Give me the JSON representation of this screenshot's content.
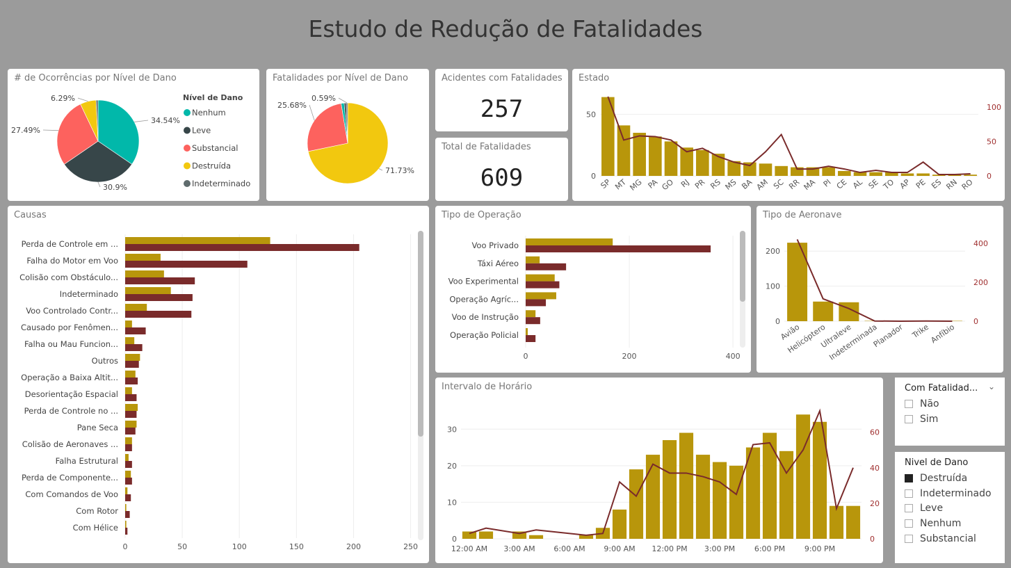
{
  "page": {
    "title": "Estudo de Redução de Fatalidades"
  },
  "colors": {
    "gold": "#b8960b",
    "maroon": "#7a2b2b",
    "nenhum": "#01b8aa",
    "leve": "#374649",
    "substancial": "#fd625e",
    "destruida": "#f2c80f",
    "indeterminado": "#5f6b6d",
    "axis_right": "#a03030"
  },
  "kpis": {
    "acidentes": {
      "label": "Acidentes com Fatalidades",
      "value": "257"
    },
    "fatalidades": {
      "label": "Total de Fatalidades",
      "value": "609"
    }
  },
  "slicers": {
    "fatalidade": {
      "title": "Com Fatalidad...",
      "chevron": "chevron-down-icon",
      "items": [
        {
          "label": "Não",
          "checked": false
        },
        {
          "label": "Sim",
          "checked": false
        }
      ]
    },
    "nivel": {
      "title": "Nivel de Dano",
      "items": [
        {
          "label": "Destruída",
          "checked": true
        },
        {
          "label": "Indeterminado",
          "checked": false
        },
        {
          "label": "Leve",
          "checked": false
        },
        {
          "label": "Nenhum",
          "checked": false
        },
        {
          "label": "Substancial",
          "checked": false
        }
      ]
    }
  },
  "chart_data": [
    {
      "id": "ocorrencias",
      "type": "pie",
      "title": "# de Ocorrências por Nível de Dano",
      "legend_title": "Nível de Dano",
      "legend_position": "right",
      "slices": [
        {
          "name": "Nenhum",
          "value": 34.54,
          "label": "34.54%"
        },
        {
          "name": "Leve",
          "value": 30.9,
          "label": "30.9%"
        },
        {
          "name": "Substancial",
          "value": 27.49,
          "label": "27.49%"
        },
        {
          "name": "Destruída",
          "value": 6.29,
          "label": "6.29%"
        },
        {
          "name": "Indeterminado",
          "value": 0.78,
          "label": ""
        }
      ]
    },
    {
      "id": "fatalidades_pie",
      "type": "pie",
      "title": "Fatalidades por Nível de Dano",
      "slices": [
        {
          "name": "Destruída",
          "value": 71.73,
          "label": "71.73%"
        },
        {
          "name": "Substancial",
          "value": 25.68,
          "label": "25.68%"
        },
        {
          "name": "Nenhum",
          "value": 1.2,
          "label": ""
        },
        {
          "name": "Leve",
          "value": 0.8,
          "label": ""
        },
        {
          "name": "Indeterminado",
          "value": 0.59,
          "label": "0.59%"
        }
      ]
    },
    {
      "id": "estado",
      "type": "bar",
      "title": "Estado",
      "categories": [
        "SP",
        "MT",
        "MG",
        "PA",
        "GO",
        "RJ",
        "PR",
        "RS",
        "MS",
        "BA",
        "AM",
        "SC",
        "RR",
        "MA",
        "PI",
        "CE",
        "AL",
        "SE",
        "TO",
        "AP",
        "PE",
        "ES",
        "RN",
        "RO"
      ],
      "series": [
        {
          "values": [
            64,
            41,
            35,
            32,
            28,
            23,
            21,
            18,
            12,
            11,
            10,
            8,
            7,
            7,
            7,
            4,
            3,
            3,
            3,
            2,
            2,
            1,
            1,
            1
          ]
        },
        {
          "values": [
            115,
            52,
            58,
            57,
            52,
            35,
            40,
            28,
            20,
            15,
            35,
            60,
            10,
            10,
            14,
            10,
            5,
            8,
            5,
            5,
            20,
            2,
            2,
            3
          ]
        }
      ],
      "y_ticks_left": [
        "0",
        "50"
      ],
      "y_ticks_right": [
        "0",
        "50",
        "100"
      ],
      "ylim_left": [
        0,
        70
      ],
      "ylim_right": [
        0,
        125
      ]
    },
    {
      "id": "causas",
      "type": "bar",
      "title": "Causas",
      "orientation": "horizontal",
      "categories": [
        "Perda de Controle em ...",
        "Falha do Motor em Voo",
        "Colisão com Obstáculo...",
        "Indeterminado",
        "Voo Controlado Contr...",
        "Causado por Fenômen...",
        "Falha ou Mau Funcion...",
        "Outros",
        "Operação a Baixa Altit...",
        "Desorientação Espacial",
        "Perda de Controle no ...",
        "Pane Seca",
        "Colisão de Aeronaves ...",
        "Falha Estrutural",
        "Perda de Componente...",
        "Com Comandos de Voo",
        "Com Rotor",
        "Com Hélice"
      ],
      "series": [
        {
          "values": [
            127,
            31,
            34,
            40,
            19,
            6,
            8,
            13,
            9,
            6,
            11,
            10,
            6,
            3,
            5,
            2,
            1,
            1
          ]
        },
        {
          "values": [
            205,
            107,
            61,
            59,
            58,
            18,
            15,
            12,
            11,
            10,
            10,
            9,
            6,
            6,
            6,
            5,
            4,
            2
          ]
        }
      ],
      "x_ticks": [
        "0",
        "50",
        "100",
        "150",
        "200",
        "250"
      ],
      "xlim": [
        0,
        260
      ]
    },
    {
      "id": "operacao",
      "type": "bar",
      "title": "Tipo de Operação",
      "orientation": "horizontal",
      "categories": [
        "Voo Privado",
        "Táxi Aéreo",
        "Voo Experimental",
        "Operação Agríc...",
        "Voo de Instrução",
        "Operação Policial"
      ],
      "series": [
        {
          "values": [
            168,
            27,
            56,
            59,
            19,
            4
          ]
        },
        {
          "values": [
            357,
            78,
            65,
            39,
            28,
            19
          ]
        }
      ],
      "x_ticks": [
        "0",
        "200",
        "400"
      ],
      "xlim": [
        0,
        420
      ]
    },
    {
      "id": "aeronave",
      "type": "bar",
      "title": "Tipo de Aeronave",
      "categories": [
        "Avião",
        "Helicóptero",
        "Ultraleve",
        "Indeterminada",
        "Planador",
        "Trike",
        "Anfíbio"
      ],
      "series": [
        {
          "values": [
            224,
            56,
            54,
            1,
            1,
            1,
            1
          ]
        },
        {
          "values": [
            420,
            115,
            65,
            1,
            0,
            1,
            0
          ]
        }
      ],
      "y_ticks_left": [
        "0",
        "100",
        "200"
      ],
      "y_ticks_right": [
        "0",
        "200",
        "400"
      ],
      "ylim_left": [
        0,
        250
      ],
      "ylim_right": [
        0,
        450
      ]
    },
    {
      "id": "horario",
      "type": "bar",
      "title": "Intervalo de Horário",
      "x_tick_labels": [
        "12:00 AM",
        "3:00 AM",
        "6:00 AM",
        "9:00 AM",
        "12:00 PM",
        "3:00 PM",
        "6:00 PM",
        "9:00 PM"
      ],
      "x_hours": [
        0,
        1,
        3,
        4,
        7,
        8,
        9,
        10,
        11,
        12,
        13,
        14,
        15,
        16,
        17,
        18,
        19,
        20,
        21,
        22,
        23
      ],
      "series": [
        {
          "values": [
            2,
            2,
            2,
            1,
            1,
            3,
            8,
            19,
            23,
            27,
            29,
            23,
            21,
            20,
            25,
            29,
            24,
            34,
            32,
            9,
            9
          ]
        },
        {
          "values": [
            3,
            6,
            3,
            5,
            2,
            3,
            32,
            24,
            42,
            37,
            37,
            35,
            32,
            25,
            53,
            54,
            37,
            50,
            72,
            17,
            40
          ]
        }
      ],
      "y_ticks_left": [
        "0",
        "10",
        "20",
        "30"
      ],
      "y_ticks_right": [
        "0",
        "20",
        "40",
        "60"
      ],
      "ylim_left": [
        0,
        35
      ],
      "ylim_right": [
        0,
        72
      ]
    }
  ]
}
